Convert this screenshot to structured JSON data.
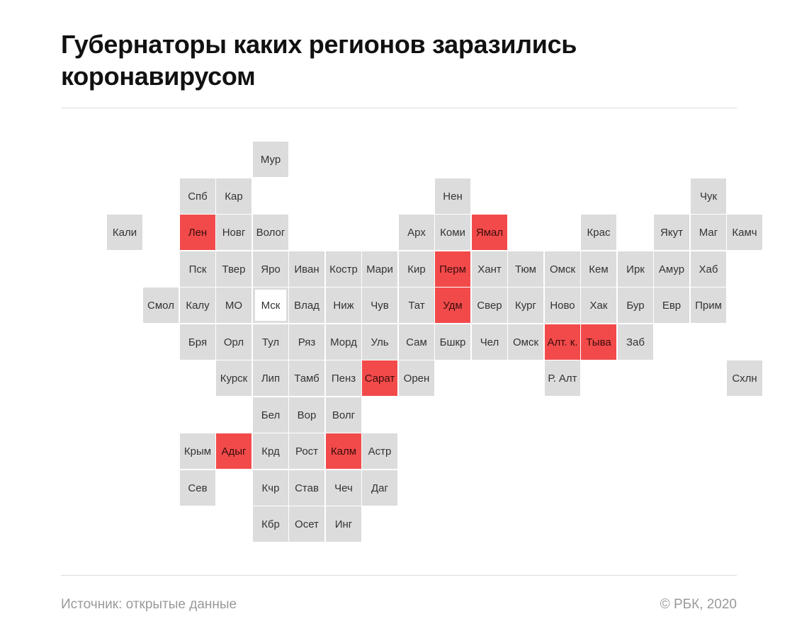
{
  "title": "Губернаторы каких регионов заразились коронавирусом",
  "colors": {
    "tile": "#dcdcdc",
    "infected": "#f24a4a",
    "capital_fill": "#ffffff",
    "text": "#333333"
  },
  "regions": [
    {
      "label": "Мур",
      "row": 0,
      "col": 5,
      "infected": false
    },
    {
      "label": "Спб",
      "row": 1,
      "col": 3,
      "infected": false
    },
    {
      "label": "Кар",
      "row": 1,
      "col": 4,
      "infected": false
    },
    {
      "label": "Нен",
      "row": 1,
      "col": 10,
      "infected": false
    },
    {
      "label": "Чук",
      "row": 1,
      "col": 17,
      "infected": false
    },
    {
      "label": "Кали",
      "row": 2,
      "col": 1,
      "infected": false
    },
    {
      "label": "Лен",
      "row": 2,
      "col": 3,
      "infected": true
    },
    {
      "label": "Новг",
      "row": 2,
      "col": 4,
      "infected": false
    },
    {
      "label": "Волог",
      "row": 2,
      "col": 5,
      "infected": false
    },
    {
      "label": "Арх",
      "row": 2,
      "col": 9,
      "infected": false
    },
    {
      "label": "Коми",
      "row": 2,
      "col": 10,
      "infected": false
    },
    {
      "label": "Ямал",
      "row": 2,
      "col": 11,
      "infected": true
    },
    {
      "label": "Крас",
      "row": 2,
      "col": 14,
      "infected": false
    },
    {
      "label": "Якут",
      "row": 2,
      "col": 16,
      "infected": false
    },
    {
      "label": "Маг",
      "row": 2,
      "col": 17,
      "infected": false
    },
    {
      "label": "Камч",
      "row": 2,
      "col": 18,
      "infected": false
    },
    {
      "label": "Пск",
      "row": 3,
      "col": 3,
      "infected": false
    },
    {
      "label": "Твер",
      "row": 3,
      "col": 4,
      "infected": false
    },
    {
      "label": "Яро",
      "row": 3,
      "col": 5,
      "infected": false
    },
    {
      "label": "Иван",
      "row": 3,
      "col": 6,
      "infected": false
    },
    {
      "label": "Костр",
      "row": 3,
      "col": 7,
      "infected": false
    },
    {
      "label": "Мари",
      "row": 3,
      "col": 8,
      "infected": false
    },
    {
      "label": "Кир",
      "row": 3,
      "col": 9,
      "infected": false
    },
    {
      "label": "Перм",
      "row": 3,
      "col": 10,
      "infected": true
    },
    {
      "label": "Хант",
      "row": 3,
      "col": 11,
      "infected": false
    },
    {
      "label": "Тюм",
      "row": 3,
      "col": 12,
      "infected": false
    },
    {
      "label": "Омск",
      "row": 3,
      "col": 13,
      "infected": false
    },
    {
      "label": "Кем",
      "row": 3,
      "col": 14,
      "infected": false
    },
    {
      "label": "Ирк",
      "row": 3,
      "col": 15,
      "infected": false
    },
    {
      "label": "Амур",
      "row": 3,
      "col": 16,
      "infected": false
    },
    {
      "label": "Хаб",
      "row": 3,
      "col": 17,
      "infected": false
    },
    {
      "label": "Смол",
      "row": 4,
      "col": 2,
      "infected": false
    },
    {
      "label": "Калу",
      "row": 4,
      "col": 3,
      "infected": false
    },
    {
      "label": "МО",
      "row": 4,
      "col": 4,
      "infected": false
    },
    {
      "label": "Мск",
      "row": 4,
      "col": 5,
      "infected": false,
      "capital": true
    },
    {
      "label": "Влад",
      "row": 4,
      "col": 6,
      "infected": false
    },
    {
      "label": "Ниж",
      "row": 4,
      "col": 7,
      "infected": false
    },
    {
      "label": "Чув",
      "row": 4,
      "col": 8,
      "infected": false
    },
    {
      "label": "Тат",
      "row": 4,
      "col": 9,
      "infected": false
    },
    {
      "label": "Удм",
      "row": 4,
      "col": 10,
      "infected": true
    },
    {
      "label": "Свер",
      "row": 4,
      "col": 11,
      "infected": false
    },
    {
      "label": "Кург",
      "row": 4,
      "col": 12,
      "infected": false
    },
    {
      "label": "Ново",
      "row": 4,
      "col": 13,
      "infected": false
    },
    {
      "label": "Хак",
      "row": 4,
      "col": 14,
      "infected": false
    },
    {
      "label": "Бур",
      "row": 4,
      "col": 15,
      "infected": false
    },
    {
      "label": "Евр",
      "row": 4,
      "col": 16,
      "infected": false
    },
    {
      "label": "Прим",
      "row": 4,
      "col": 17,
      "infected": false
    },
    {
      "label": "Бря",
      "row": 5,
      "col": 3,
      "infected": false
    },
    {
      "label": "Орл",
      "row": 5,
      "col": 4,
      "infected": false
    },
    {
      "label": "Тул",
      "row": 5,
      "col": 5,
      "infected": false
    },
    {
      "label": "Ряз",
      "row": 5,
      "col": 6,
      "infected": false
    },
    {
      "label": "Морд",
      "row": 5,
      "col": 7,
      "infected": false
    },
    {
      "label": "Уль",
      "row": 5,
      "col": 8,
      "infected": false
    },
    {
      "label": "Сам",
      "row": 5,
      "col": 9,
      "infected": false
    },
    {
      "label": "Бшкр",
      "row": 5,
      "col": 10,
      "infected": false
    },
    {
      "label": "Чел",
      "row": 5,
      "col": 11,
      "infected": false
    },
    {
      "label": "Омск",
      "row": 5,
      "col": 12,
      "infected": false
    },
    {
      "label": "Алт. к.",
      "row": 5,
      "col": 13,
      "infected": true
    },
    {
      "label": "Тыва",
      "row": 5,
      "col": 14,
      "infected": true
    },
    {
      "label": "Заб",
      "row": 5,
      "col": 15,
      "infected": false
    },
    {
      "label": "Курск",
      "row": 6,
      "col": 4,
      "infected": false
    },
    {
      "label": "Лип",
      "row": 6,
      "col": 5,
      "infected": false
    },
    {
      "label": "Тамб",
      "row": 6,
      "col": 6,
      "infected": false
    },
    {
      "label": "Пенз",
      "row": 6,
      "col": 7,
      "infected": false
    },
    {
      "label": "Сарат",
      "row": 6,
      "col": 8,
      "infected": true
    },
    {
      "label": "Орен",
      "row": 6,
      "col": 9,
      "infected": false
    },
    {
      "label": "Р. Алт",
      "row": 6,
      "col": 13,
      "infected": false
    },
    {
      "label": "Схлн",
      "row": 6,
      "col": 18,
      "infected": false
    },
    {
      "label": "Бел",
      "row": 7,
      "col": 5,
      "infected": false
    },
    {
      "label": "Вор",
      "row": 7,
      "col": 6,
      "infected": false
    },
    {
      "label": "Волг",
      "row": 7,
      "col": 7,
      "infected": false
    },
    {
      "label": "Крым",
      "row": 8,
      "col": 3,
      "infected": false
    },
    {
      "label": "Адыг",
      "row": 8,
      "col": 4,
      "infected": true
    },
    {
      "label": "Крд",
      "row": 8,
      "col": 5,
      "infected": false
    },
    {
      "label": "Рост",
      "row": 8,
      "col": 6,
      "infected": false
    },
    {
      "label": "Калм",
      "row": 8,
      "col": 7,
      "infected": true
    },
    {
      "label": "Астр",
      "row": 8,
      "col": 8,
      "infected": false
    },
    {
      "label": "Сев",
      "row": 9,
      "col": 3,
      "infected": false
    },
    {
      "label": "Кчр",
      "row": 9,
      "col": 5,
      "infected": false
    },
    {
      "label": "Став",
      "row": 9,
      "col": 6,
      "infected": false
    },
    {
      "label": "Чеч",
      "row": 9,
      "col": 7,
      "infected": false
    },
    {
      "label": "Даг",
      "row": 9,
      "col": 8,
      "infected": false
    },
    {
      "label": "Кбр",
      "row": 10,
      "col": 5,
      "infected": false
    },
    {
      "label": "Осет",
      "row": 10,
      "col": 6,
      "infected": false
    },
    {
      "label": "Инг",
      "row": 10,
      "col": 7,
      "infected": false
    }
  ],
  "footer": {
    "source": "Источник:  открытые данные",
    "copyright": "©  РБК, 2020"
  }
}
